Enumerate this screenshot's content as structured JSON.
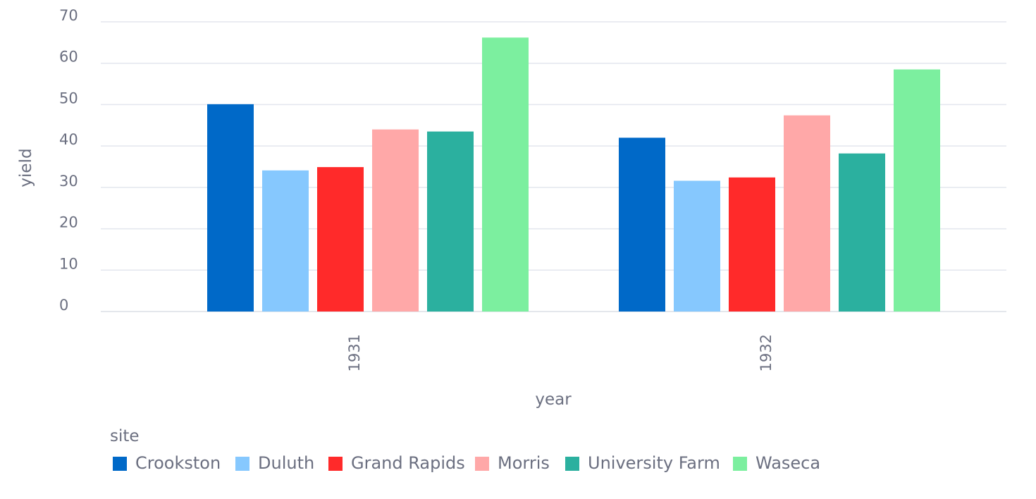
{
  "chart_data": {
    "type": "bar",
    "categories": [
      "1931",
      "1932"
    ],
    "xlabel": "year",
    "ylabel": "yield",
    "ylim": [
      0,
      70
    ],
    "yticks": [
      0,
      10,
      20,
      30,
      40,
      50,
      60,
      70
    ],
    "grid": true,
    "legend_title": "site",
    "legend_position": "bottom-left",
    "series": [
      {
        "name": "Crookston",
        "color": "#0069c8",
        "values": [
          50.1,
          42.0
        ]
      },
      {
        "name": "Duluth",
        "color": "#86c8fe",
        "values": [
          34.1,
          31.6
        ]
      },
      {
        "name": "Grand Rapids",
        "color": "#ff2a2a",
        "values": [
          34.9,
          32.4
        ]
      },
      {
        "name": "Morris",
        "color": "#ffa8a8",
        "values": [
          44.0,
          47.4
        ]
      },
      {
        "name": "University Farm",
        "color": "#2bb09f",
        "values": [
          43.5,
          38.2
        ]
      },
      {
        "name": "Waseca",
        "color": "#7cef9f",
        "values": [
          66.2,
          58.5
        ]
      }
    ]
  }
}
